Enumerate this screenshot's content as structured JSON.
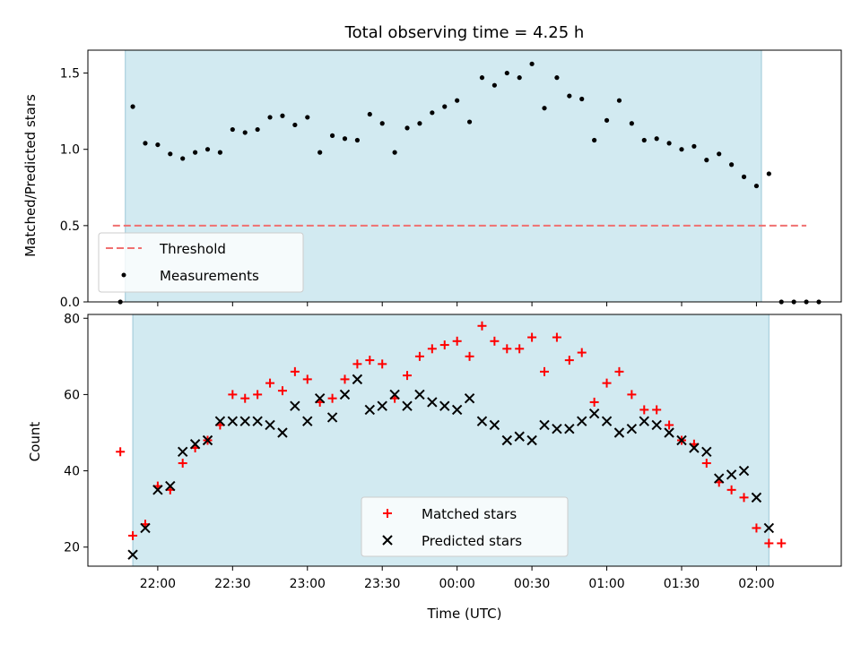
{
  "chart_data": [
    {
      "type": "scatter",
      "title": "Total observing time = 4.25 h",
      "xlabel": "",
      "ylabel": "Matched/Predicted stars",
      "ylim": [
        0,
        1.65
      ],
      "yticks": [
        "0.0",
        "0.5",
        "1.0",
        "1.5"
      ],
      "ytick_values": [
        0,
        0.5,
        1.0,
        1.5
      ],
      "shaded_span_x": [
        -13,
        242
      ],
      "legend_position": "lower-left",
      "threshold": {
        "name": "Threshold",
        "value": 0.5,
        "x_range": [
          -18,
          260
        ],
        "color": "#f07070"
      },
      "series": [
        {
          "name": "Measurements",
          "color": "#000000",
          "x": [
            -15,
            -10,
            -5,
            0,
            5,
            10,
            15,
            20,
            25,
            30,
            35,
            40,
            45,
            50,
            55,
            60,
            65,
            70,
            75,
            80,
            85,
            90,
            95,
            100,
            105,
            110,
            115,
            120,
            125,
            130,
            135,
            140,
            145,
            150,
            155,
            160,
            165,
            170,
            175,
            180,
            185,
            190,
            195,
            200,
            205,
            210,
            215,
            220,
            225,
            230,
            235,
            240,
            245,
            250,
            255,
            260,
            265
          ],
          "y": [
            0.0,
            1.28,
            1.04,
            1.03,
            0.97,
            0.94,
            0.98,
            1.0,
            0.98,
            1.13,
            1.11,
            1.13,
            1.21,
            1.22,
            1.16,
            1.21,
            0.98,
            1.09,
            1.07,
            1.06,
            1.23,
            1.17,
            0.98,
            1.14,
            1.17,
            1.24,
            1.28,
            1.32,
            1.18,
            1.47,
            1.42,
            1.5,
            1.47,
            1.56,
            1.27,
            1.47,
            1.35,
            1.33,
            1.06,
            1.19,
            1.32,
            1.17,
            1.06,
            1.07,
            1.04,
            1.0,
            1.02,
            0.93,
            0.97,
            0.9,
            0.82,
            0.76,
            0.84,
            0.0,
            0.0,
            0.0,
            0.0
          ]
        }
      ]
    },
    {
      "type": "scatter",
      "xlabel": "Time (UTC)",
      "ylabel": "Count",
      "ylim": [
        15,
        81
      ],
      "yticks": [
        "20",
        "40",
        "60",
        "80"
      ],
      "ytick_values": [
        20,
        40,
        60,
        80
      ],
      "xlim": [
        -28,
        274
      ],
      "xticks": [
        "22:00",
        "22:30",
        "23:00",
        "23:30",
        "00:00",
        "00:30",
        "01:00",
        "01:30",
        "02:00"
      ],
      "xtick_values": [
        0,
        30,
        60,
        90,
        120,
        150,
        180,
        210,
        240
      ],
      "shaded_span_x": [
        -10,
        245
      ],
      "legend_position": "lower-center",
      "series": [
        {
          "name": "Matched stars",
          "color": "#ff0000",
          "marker": "plus",
          "x": [
            -15,
            -10,
            -5,
            0,
            5,
            10,
            15,
            20,
            25,
            30,
            35,
            40,
            45,
            50,
            55,
            60,
            65,
            70,
            75,
            80,
            85,
            90,
            95,
            100,
            105,
            110,
            115,
            120,
            125,
            130,
            135,
            140,
            145,
            150,
            155,
            160,
            165,
            170,
            175,
            180,
            185,
            190,
            195,
            200,
            205,
            210,
            215,
            220,
            225,
            230,
            235,
            240,
            245,
            250
          ],
          "y": [
            45,
            23,
            26,
            36,
            35,
            42,
            46,
            48,
            52,
            60,
            59,
            60,
            63,
            61,
            66,
            64,
            58,
            59,
            64,
            68,
            69,
            68,
            59,
            65,
            70,
            72,
            73,
            74,
            70,
            78,
            74,
            72,
            72,
            75,
            66,
            75,
            69,
            71,
            58,
            63,
            66,
            60,
            56,
            56,
            52,
            48,
            47,
            42,
            37,
            35,
            33,
            25,
            21,
            21
          ]
        },
        {
          "name": "Predicted stars",
          "color": "#000000",
          "marker": "x",
          "x": [
            -10,
            -5,
            0,
            5,
            10,
            15,
            20,
            25,
            30,
            35,
            40,
            45,
            50,
            55,
            60,
            65,
            70,
            75,
            80,
            85,
            90,
            95,
            100,
            105,
            110,
            115,
            120,
            125,
            130,
            135,
            140,
            145,
            150,
            155,
            160,
            165,
            170,
            175,
            180,
            185,
            190,
            195,
            200,
            205,
            210,
            215,
            220,
            225,
            230,
            235,
            240,
            245
          ],
          "y": [
            18,
            25,
            35,
            36,
            45,
            47,
            48,
            53,
            53,
            53,
            53,
            52,
            50,
            57,
            53,
            59,
            54,
            60,
            64,
            56,
            57,
            60,
            57,
            60,
            58,
            57,
            56,
            59,
            53,
            52,
            48,
            49,
            48,
            52,
            51,
            51,
            53,
            55,
            53,
            50,
            51,
            53,
            52,
            50,
            48,
            46,
            45,
            38,
            39,
            40,
            33,
            25
          ]
        }
      ]
    }
  ]
}
